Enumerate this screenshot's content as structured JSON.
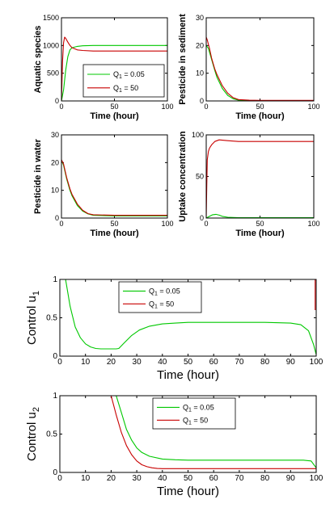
{
  "colors": {
    "green": "#00c800",
    "red": "#c80000"
  },
  "legend": {
    "series1": {
      "label": "Q",
      "sub": "1",
      "rest": " = 0.05",
      "color": "#00c800"
    },
    "series2": {
      "label": "Q",
      "sub": "1",
      "rest": " = 50",
      "color": "#c80000"
    }
  },
  "chart_data": [
    {
      "type": "line",
      "xlabel": "Time (hour)",
      "ylabel": "Aquatic species",
      "xlim": [
        0,
        100
      ],
      "ylim": [
        0,
        1500
      ],
      "xticks": [
        0,
        50,
        100
      ],
      "yticks": [
        0,
        500,
        1000,
        1500
      ],
      "legend_position": "center-right",
      "series": [
        {
          "name": "Q1 = 0.05",
          "x": [
            0,
            2,
            4,
            6,
            8,
            10,
            15,
            20,
            30,
            50,
            100
          ],
          "y": [
            0,
            200,
            550,
            800,
            920,
            960,
            985,
            995,
            1000,
            1000,
            1000
          ]
        },
        {
          "name": "Q1 = 50",
          "x": [
            0,
            1,
            2,
            3,
            4,
            6,
            8,
            10,
            15,
            20,
            30,
            50,
            100
          ],
          "y": [
            0,
            700,
            1050,
            1150,
            1130,
            1060,
            1000,
            960,
            920,
            910,
            900,
            900,
            900
          ]
        }
      ]
    },
    {
      "type": "line",
      "xlabel": "Time (hour)",
      "ylabel": "Pesticide in sediment",
      "xlim": [
        0,
        100
      ],
      "ylim": [
        0,
        30
      ],
      "xticks": [
        0,
        50,
        100
      ],
      "yticks": [
        0,
        10,
        20,
        30
      ],
      "series": [
        {
          "name": "Q1 = 0.05",
          "x": [
            0,
            2,
            5,
            8,
            10,
            15,
            20,
            25,
            30,
            40,
            50,
            100
          ],
          "y": [
            20,
            19,
            15,
            11,
            8.5,
            4.5,
            2,
            0.8,
            0.3,
            0.1,
            0.1,
            0.1
          ]
        },
        {
          "name": "Q1 = 50",
          "x": [
            0,
            1,
            3,
            5,
            8,
            10,
            15,
            20,
            25,
            30,
            40,
            50,
            100
          ],
          "y": [
            23,
            22,
            19,
            15.5,
            11.5,
            9.5,
            5.5,
            2.8,
            1.2,
            0.5,
            0.3,
            0.2,
            0.2
          ]
        }
      ]
    },
    {
      "type": "line",
      "xlabel": "Time (hour)",
      "ylabel": "Pesticide in water",
      "xlim": [
        0,
        100
      ],
      "ylim": [
        0,
        30
      ],
      "xticks": [
        0,
        50,
        100
      ],
      "yticks": [
        0,
        10,
        20,
        30
      ],
      "series": [
        {
          "name": "Q1 = 0.05",
          "x": [
            0,
            2,
            5,
            8,
            10,
            15,
            20,
            25,
            30,
            50,
            100
          ],
          "y": [
            21,
            19,
            14,
            10,
            8,
            4.5,
            2.5,
            1.5,
            1,
            0.8,
            0.8
          ]
        },
        {
          "name": "Q1 = 50",
          "x": [
            0,
            2,
            5,
            8,
            10,
            15,
            20,
            25,
            30,
            50,
            100
          ],
          "y": [
            21,
            19.5,
            14.5,
            10.5,
            8.5,
            5,
            2.8,
            1.6,
            1.2,
            1,
            1
          ]
        }
      ]
    },
    {
      "type": "line",
      "xlabel": "Time (hour)",
      "ylabel": "Uptake concentration",
      "xlim": [
        0,
        100
      ],
      "ylim": [
        0,
        100
      ],
      "xticks": [
        0,
        50,
        100
      ],
      "yticks": [
        0,
        50,
        100
      ],
      "series": [
        {
          "name": "Q1 = 0.05",
          "x": [
            0,
            3,
            6,
            9,
            12,
            15,
            20,
            30,
            50,
            100
          ],
          "y": [
            0,
            2,
            4,
            4.5,
            3.5,
            2,
            1,
            0.5,
            0.5,
            0.5
          ]
        },
        {
          "name": "Q1 = 50",
          "x": [
            0,
            0.5,
            1,
            2,
            3,
            5,
            8,
            12,
            20,
            30,
            50,
            100
          ],
          "y": [
            0,
            40,
            70,
            80,
            84,
            88,
            92,
            94,
            93,
            92,
            92,
            92
          ]
        }
      ]
    },
    {
      "type": "line",
      "xlabel": "Time (hour)",
      "ylabel": "Control u",
      "ylabel_sub": "1",
      "xlim": [
        0,
        100
      ],
      "ylim": [
        0,
        1
      ],
      "xticks": [
        0,
        10,
        20,
        30,
        40,
        50,
        60,
        70,
        80,
        90,
        100
      ],
      "yticks": [
        0,
        0.5,
        1
      ],
      "legend_position": "top-center",
      "series": [
        {
          "name": "Q1 = 0.05",
          "x": [
            0,
            2,
            4,
            6,
            8,
            10,
            12,
            14,
            16,
            18,
            20,
            22,
            23,
            25,
            28,
            31,
            35,
            40,
            45,
            50,
            60,
            70,
            80,
            90,
            94,
            97,
            99,
            100
          ],
          "y": [
            1.2,
            1.05,
            0.65,
            0.38,
            0.24,
            0.16,
            0.12,
            0.1,
            0.095,
            0.095,
            0.095,
            0.095,
            0.1,
            0.17,
            0.27,
            0.34,
            0.39,
            0.42,
            0.43,
            0.44,
            0.44,
            0.44,
            0.44,
            0.43,
            0.41,
            0.33,
            0.15,
            0.02
          ]
        },
        {
          "name": "Q1 = 50",
          "x": [
            99.6,
            99.6
          ],
          "y": [
            1.0,
            0.6
          ]
        }
      ]
    },
    {
      "type": "line",
      "xlabel": "Time (hour)",
      "ylabel": "Control u",
      "ylabel_sub": "2",
      "xlim": [
        0,
        100
      ],
      "ylim": [
        0,
        1
      ],
      "xticks": [
        0,
        10,
        20,
        30,
        40,
        50,
        60,
        70,
        80,
        90,
        100
      ],
      "yticks": [
        0,
        0.5,
        1
      ],
      "legend_position": "top-center",
      "series": [
        {
          "name": "Q1 = 0.05",
          "x": [
            22,
            24,
            26,
            28,
            30,
            32,
            35,
            40,
            45,
            50,
            60,
            70,
            80,
            90,
            95,
            98,
            100
          ],
          "y": [
            1.0,
            0.78,
            0.56,
            0.42,
            0.32,
            0.26,
            0.21,
            0.175,
            0.165,
            0.16,
            0.16,
            0.16,
            0.16,
            0.16,
            0.16,
            0.15,
            0.06
          ]
        },
        {
          "name": "Q1 = 50",
          "x": [
            20,
            22,
            24,
            26,
            28,
            30,
            32,
            34,
            36,
            38,
            40,
            50,
            60,
            70,
            80,
            90,
            95,
            100
          ],
          "y": [
            1.0,
            0.75,
            0.52,
            0.35,
            0.23,
            0.15,
            0.1,
            0.075,
            0.06,
            0.052,
            0.05,
            0.05,
            0.05,
            0.05,
            0.05,
            0.05,
            0.05,
            0.05
          ]
        }
      ]
    }
  ]
}
